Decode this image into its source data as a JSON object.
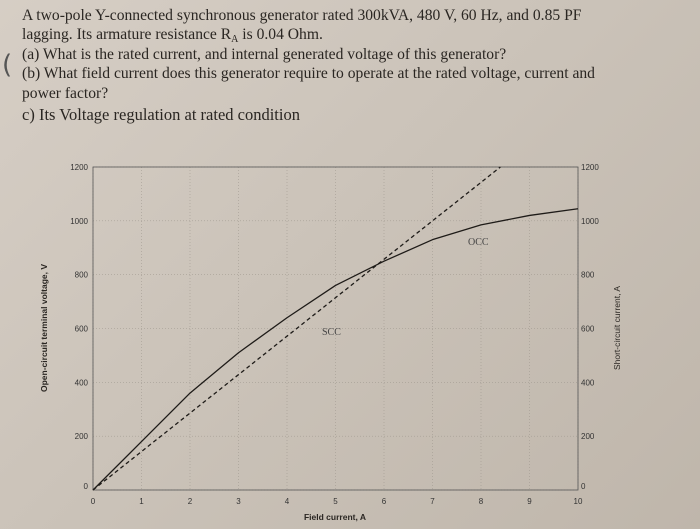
{
  "problem": {
    "lines": [
      "A two-pole Y-connected synchronous generator rated 300kVA, 480 V, 60 Hz, and 0.85 PF",
      "lagging. Its armature resistance R",
      "(a) What is the rated current, and internal generated voltage of this generator?",
      "(b) What field current does this generator require to operate at the rated voltage, current and",
      "power factor?",
      "c) Its Voltage regulation at rated condition"
    ],
    "subscript": "A",
    "line2_tail": " is 0.04 Ohm."
  },
  "chart_data": {
    "type": "line",
    "title": "",
    "xlabel": "Field current, A",
    "ylabel": "Open-circuit terminal voltage, V",
    "y2label": "Short-circuit current, A",
    "xlim": [
      0,
      10
    ],
    "ylim": [
      0,
      1200
    ],
    "y2lim": [
      0,
      1200
    ],
    "xticks": [
      "0",
      "1",
      "2",
      "3",
      "4",
      "5",
      "6",
      "7",
      "8",
      "9",
      "10"
    ],
    "yticks": [
      "0",
      "200",
      "400",
      "600",
      "800",
      "1000",
      "1200"
    ],
    "y2ticks": [
      "0",
      "200",
      "400",
      "600",
      "800",
      "1000",
      "1200"
    ],
    "grid": true,
    "series": [
      {
        "name": "OCC",
        "axis": "left",
        "style": "solid",
        "x": [
          0,
          1,
          2,
          3,
          4,
          5,
          6,
          7,
          8,
          9,
          10
        ],
        "y": [
          0,
          180,
          360,
          510,
          640,
          760,
          850,
          930,
          985,
          1020,
          1045
        ]
      },
      {
        "name": "SCC",
        "axis": "right",
        "style": "dashed",
        "x": [
          0,
          8.4
        ],
        "y": [
          0,
          1200
        ]
      }
    ],
    "colors": {
      "line": "#1e1b18",
      "grid": "#9a938a"
    }
  }
}
